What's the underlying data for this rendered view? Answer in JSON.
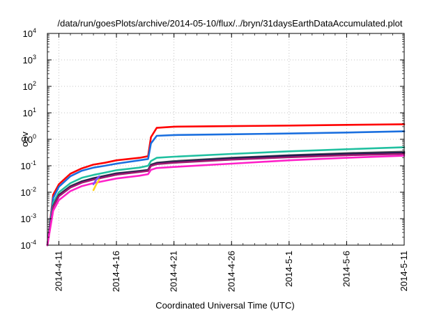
{
  "chart_data": {
    "type": "line",
    "title": "/data/run/goesPlots/archive/2014-05-10/flux/../bryn/31daysEarthDataAccumulated.plot",
    "xlabel": "Coordinated Universal Time (UTC)",
    "ylabel": "cSv",
    "yscale": "log",
    "ylim": [
      0.0001,
      10000
    ],
    "xlim": [
      "2014-04-10",
      "2014-05-11"
    ],
    "grid": true,
    "legend": "none",
    "x_ticks": [
      "2014-4-11",
      "2014-4-16",
      "2014-4-21",
      "2014-4-26",
      "2014-5-1",
      "2014-5-6",
      "2014-5-11"
    ],
    "y_ticks": [
      {
        "value": 0.0001,
        "base": "10",
        "exp": "-4"
      },
      {
        "value": 0.001,
        "base": "10",
        "exp": "-3"
      },
      {
        "value": 0.01,
        "base": "10",
        "exp": "-2"
      },
      {
        "value": 0.1,
        "base": "10",
        "exp": "-1"
      },
      {
        "value": 1,
        "base": "10",
        "exp": "0"
      },
      {
        "value": 10,
        "base": "10",
        "exp": "1"
      },
      {
        "value": 100,
        "base": "10",
        "exp": "2"
      },
      {
        "value": 1000,
        "base": "10",
        "exp": "3"
      },
      {
        "value": 10000,
        "base": "10",
        "exp": "4"
      }
    ],
    "series": [
      {
        "color": "#ff0000",
        "points": [
          [
            "2014-04-10",
            0.0001
          ],
          [
            "2014-04-10T12:00",
            0.008
          ],
          [
            "2014-04-11",
            0.02
          ],
          [
            "2014-04-12",
            0.05
          ],
          [
            "2014-04-13",
            0.08
          ],
          [
            "2014-04-14",
            0.11
          ],
          [
            "2014-04-15",
            0.13
          ],
          [
            "2014-04-16",
            0.16
          ],
          [
            "2014-04-18",
            0.2
          ],
          [
            "2014-04-18T18:00",
            0.23
          ],
          [
            "2014-04-19",
            1.2
          ],
          [
            "2014-04-19T12:00",
            2.7
          ],
          [
            "2014-04-21",
            3.0
          ],
          [
            "2014-04-26",
            3.15
          ],
          [
            "2014-05-01",
            3.3
          ],
          [
            "2014-05-06",
            3.5
          ],
          [
            "2014-05-11",
            3.7
          ]
        ]
      },
      {
        "color": "#1a6fdf",
        "points": [
          [
            "2014-04-10",
            0.0001
          ],
          [
            "2014-04-10T12:00",
            0.006
          ],
          [
            "2014-04-11",
            0.016
          ],
          [
            "2014-04-12",
            0.04
          ],
          [
            "2014-04-13",
            0.065
          ],
          [
            "2014-04-14",
            0.085
          ],
          [
            "2014-04-15",
            0.1
          ],
          [
            "2014-04-16",
            0.12
          ],
          [
            "2014-04-18",
            0.16
          ],
          [
            "2014-04-18T18:00",
            0.18
          ],
          [
            "2014-04-19",
            0.7
          ],
          [
            "2014-04-19T12:00",
            1.35
          ],
          [
            "2014-04-21",
            1.45
          ],
          [
            "2014-04-26",
            1.55
          ],
          [
            "2014-05-01",
            1.65
          ],
          [
            "2014-05-06",
            1.8
          ],
          [
            "2014-05-11",
            2.0
          ]
        ]
      },
      {
        "color": "#20c0a0",
        "points": [
          [
            "2014-04-10",
            0.0001
          ],
          [
            "2014-04-10T12:00",
            0.004
          ],
          [
            "2014-04-11",
            0.01
          ],
          [
            "2014-04-12",
            0.022
          ],
          [
            "2014-04-13",
            0.035
          ],
          [
            "2014-04-14",
            0.045
          ],
          [
            "2014-04-15",
            0.055
          ],
          [
            "2014-04-16",
            0.068
          ],
          [
            "2014-04-18",
            0.085
          ],
          [
            "2014-04-18T18:00",
            0.1
          ],
          [
            "2014-04-19",
            0.15
          ],
          [
            "2014-04-19T12:00",
            0.2
          ],
          [
            "2014-04-21",
            0.22
          ],
          [
            "2014-04-26",
            0.28
          ],
          [
            "2014-05-01",
            0.35
          ],
          [
            "2014-05-06",
            0.42
          ],
          [
            "2014-05-11",
            0.5
          ]
        ]
      },
      {
        "color": "#555555",
        "points": [
          [
            "2014-04-10",
            0.0001
          ],
          [
            "2014-04-10T12:00",
            0.003
          ],
          [
            "2014-04-11",
            0.008
          ],
          [
            "2014-04-12",
            0.017
          ],
          [
            "2014-04-13",
            0.026
          ],
          [
            "2014-04-14",
            0.034
          ],
          [
            "2014-04-15",
            0.042
          ],
          [
            "2014-04-16",
            0.052
          ],
          [
            "2014-04-18",
            0.064
          ],
          [
            "2014-04-18T18:00",
            0.07
          ],
          [
            "2014-04-19",
            0.11
          ],
          [
            "2014-04-19T12:00",
            0.13
          ],
          [
            "2014-04-21",
            0.15
          ],
          [
            "2014-04-26",
            0.2
          ],
          [
            "2014-05-01",
            0.25
          ],
          [
            "2014-05-06",
            0.3
          ],
          [
            "2014-05-11",
            0.34
          ]
        ]
      },
      {
        "color": "#1a1a50",
        "points": [
          [
            "2014-04-10",
            0.0001
          ],
          [
            "2014-04-10T12:00",
            0.003
          ],
          [
            "2014-04-11",
            0.0075
          ],
          [
            "2014-04-12",
            0.016
          ],
          [
            "2014-04-13",
            0.025
          ],
          [
            "2014-04-14",
            0.033
          ],
          [
            "2014-04-15",
            0.04
          ],
          [
            "2014-04-16",
            0.05
          ],
          [
            "2014-04-18",
            0.062
          ],
          [
            "2014-04-18T18:00",
            0.068
          ],
          [
            "2014-04-19",
            0.105
          ],
          [
            "2014-04-19T12:00",
            0.125
          ],
          [
            "2014-04-21",
            0.14
          ],
          [
            "2014-04-26",
            0.19
          ],
          [
            "2014-05-01",
            0.24
          ],
          [
            "2014-05-06",
            0.28
          ],
          [
            "2014-05-11",
            0.31
          ]
        ]
      },
      {
        "color": "#a01a70",
        "points": [
          [
            "2014-04-10",
            0.0001
          ],
          [
            "2014-04-10T12:00",
            0.0028
          ],
          [
            "2014-04-11",
            0.007
          ],
          [
            "2014-04-12",
            0.015
          ],
          [
            "2014-04-13",
            0.023
          ],
          [
            "2014-04-14",
            0.03
          ],
          [
            "2014-04-15",
            0.037
          ],
          [
            "2014-04-16",
            0.046
          ],
          [
            "2014-04-18",
            0.058
          ],
          [
            "2014-04-18T18:00",
            0.064
          ],
          [
            "2014-04-19",
            0.098
          ],
          [
            "2014-04-19T12:00",
            0.115
          ],
          [
            "2014-04-21",
            0.13
          ],
          [
            "2014-04-26",
            0.17
          ],
          [
            "2014-05-01",
            0.21
          ],
          [
            "2014-05-06",
            0.25
          ],
          [
            "2014-05-11",
            0.28
          ]
        ]
      },
      {
        "color": "#ff20c8",
        "points": [
          [
            "2014-04-10",
            0.0001
          ],
          [
            "2014-04-10T12:00",
            0.002
          ],
          [
            "2014-04-11",
            0.005
          ],
          [
            "2014-04-12",
            0.011
          ],
          [
            "2014-04-13",
            0.017
          ],
          [
            "2014-04-14",
            0.022
          ],
          [
            "2014-04-15",
            0.027
          ],
          [
            "2014-04-16",
            0.033
          ],
          [
            "2014-04-18",
            0.042
          ],
          [
            "2014-04-18T18:00",
            0.048
          ],
          [
            "2014-04-19",
            0.07
          ],
          [
            "2014-04-19T12:00",
            0.082
          ],
          [
            "2014-04-21",
            0.09
          ],
          [
            "2014-04-26",
            0.12
          ],
          [
            "2014-05-01",
            0.16
          ],
          [
            "2014-05-06",
            0.2
          ],
          [
            "2014-05-11",
            0.24
          ]
        ]
      },
      {
        "color": "#ffd21a",
        "points": [
          [
            "2014-04-14",
            0.012
          ],
          [
            "2014-04-14T06:00",
            0.02
          ],
          [
            "2014-04-14T12:00",
            0.03
          ]
        ]
      },
      {
        "color": "#7a50ff",
        "points": [
          [
            "2014-04-14",
            0.02
          ],
          [
            "2014-04-14T06:00",
            0.03
          ],
          [
            "2014-04-14T12:00",
            0.04
          ]
        ]
      }
    ]
  }
}
